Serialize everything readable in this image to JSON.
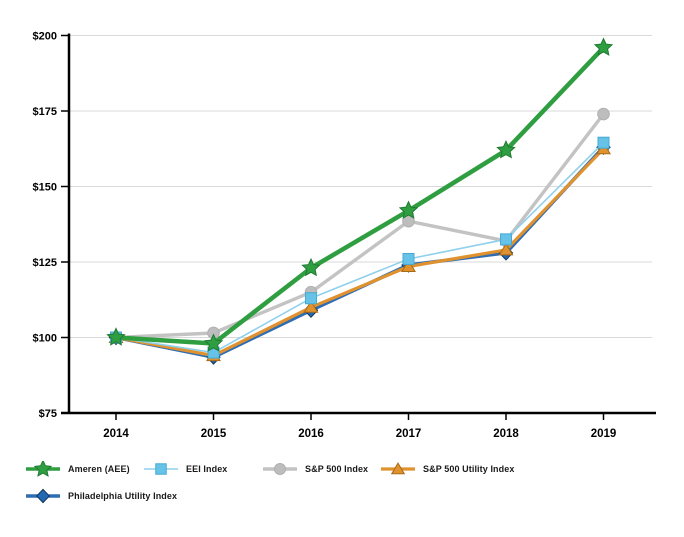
{
  "chart_data": {
    "type": "line",
    "title": "",
    "xlabel": "",
    "ylabel": "",
    "categories": [
      "2014",
      "2015",
      "2016",
      "2017",
      "2018",
      "2019"
    ],
    "y_ticks": [
      "$75",
      "$100",
      "$125",
      "$150",
      "$175",
      "$200"
    ],
    "ylim": [
      75,
      200
    ],
    "y_tick_step": 25,
    "grid": "horizontal",
    "gridline_color": "#d9d9d9",
    "axis_color": "#000000",
    "legend_position": "bottom-left",
    "draw_order": [
      2,
      4,
      3,
      1,
      0
    ],
    "series": [
      {
        "name": "Ameren (AEE)",
        "marker": "star",
        "color": "#2f9e41",
        "marker_color": "#2f9e41",
        "marker_stroke": "#1f7a33",
        "line_width": 4.5,
        "values": [
          100,
          98,
          123,
          142,
          162,
          196
        ]
      },
      {
        "name": "EEI Index",
        "marker": "square",
        "color": "#8fd0ec",
        "marker_color": "#66c2e7",
        "marker_stroke": "#46a9d4",
        "line_width": 1.6,
        "values": [
          100,
          95,
          113,
          126,
          132.5,
          164.5
        ]
      },
      {
        "name": "S&P 500 Index",
        "marker": "circle",
        "color": "#c3c3c3",
        "marker_color": "#bdbdbd",
        "marker_stroke": "#b0b0b0",
        "line_width": 3.4,
        "values": [
          100,
          101.5,
          115,
          138.5,
          132,
          174
        ]
      },
      {
        "name": "S&P 500 Utility Index",
        "marker": "triangle",
        "color": "#e0922f",
        "marker_color": "#e0922f",
        "marker_stroke": "#a86a15",
        "line_width": 3.2,
        "values": [
          100,
          94,
          110,
          123.5,
          129,
          162.5
        ]
      },
      {
        "name": "Philadelphia Utility Index",
        "marker": "diamond",
        "color": "#2e6db4",
        "marker_color": "#2268b2",
        "marker_stroke": "#16365c",
        "line_width": 3.6,
        "values": [
          100,
          93.5,
          109,
          124,
          128,
          163
        ]
      }
    ]
  }
}
